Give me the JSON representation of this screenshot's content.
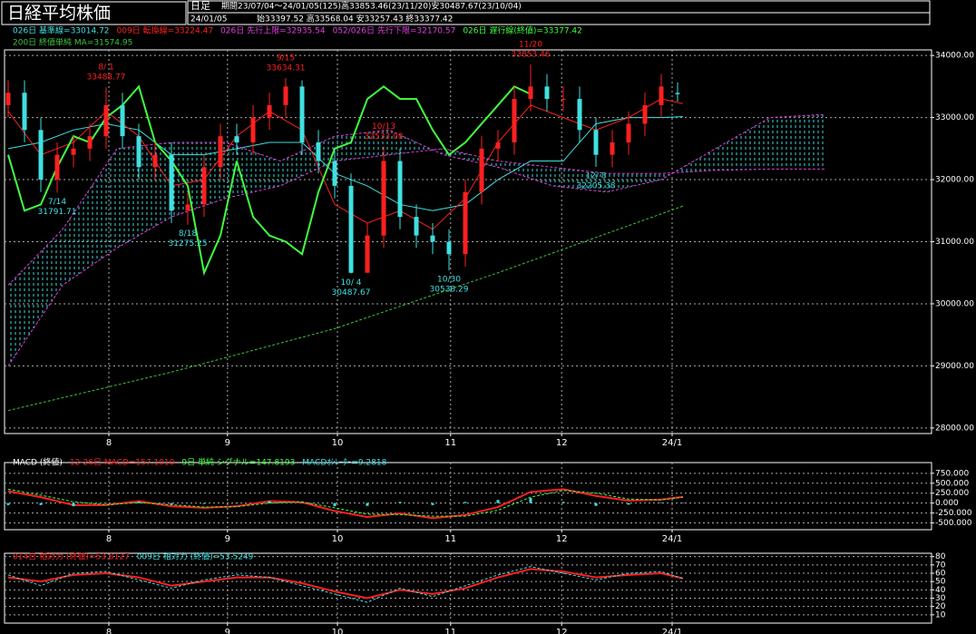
{
  "header": {
    "title": "日経平均株価",
    "period_label": "日足",
    "period": "期間23/07/04～24/01/05(125)高33853.46(23/11/20)安30487.67(23/10/04)",
    "date": "24/01/05",
    "ohlc": "始33397.52 高33568.04 安33257.43 終33377.42"
  },
  "chart_data": [
    {
      "type": "candlestick",
      "xlim": [
        -0.67,
        169.67
      ],
      "xticks": [
        {
          "value": 18.5,
          "label": "8"
        },
        {
          "value": 40.3,
          "label": "9"
        },
        {
          "value": 60.5,
          "label": "10"
        },
        {
          "value": 81.3,
          "label": "11"
        },
        {
          "value": 101.7,
          "label": "12"
        },
        {
          "value": 122,
          "label": "24/1"
        }
      ],
      "ylim": [
        27910,
        34090
      ],
      "yticks": [
        {
          "value": 34000,
          "label": "34000.00"
        },
        {
          "value": 33000,
          "label": "33000.00"
        },
        {
          "value": 32000,
          "label": "32000.00"
        },
        {
          "value": 31000,
          "label": "31000.00"
        },
        {
          "value": 30000,
          "label": "30000.00"
        },
        {
          "value": 29000,
          "label": "29000.00"
        },
        {
          "value": 28000,
          "label": "28000.00"
        }
      ],
      "grid": true,
      "up_color": "#ff2020",
      "down_color": "#40e0e0",
      "cloud_color": "#40d8d8",
      "candles": {
        "x": [
          0,
          3,
          6,
          9,
          12,
          15,
          18,
          21,
          24,
          27,
          30,
          33,
          36,
          39,
          42,
          45,
          48,
          51,
          54,
          57,
          60,
          63,
          66,
          69,
          72,
          75,
          78,
          81,
          84,
          87,
          90,
          93,
          96,
          99,
          102,
          105,
          108,
          111,
          114,
          117,
          120,
          123
        ],
        "open": [
          33200,
          33400,
          32800,
          32000,
          32400,
          32500,
          32700,
          33200,
          32700,
          32200,
          32400,
          31500,
          31600,
          32200,
          32700,
          32600,
          33000,
          33200,
          33500,
          32600,
          32300,
          31900,
          30500,
          31100,
          32300,
          31400,
          31100,
          31000,
          30800,
          31800,
          32500,
          32600,
          33300,
          33500,
          33300,
          33300,
          32800,
          32400,
          32600,
          32900,
          33200,
          33397.52
        ],
        "high": [
          33600,
          33600,
          33000,
          32600,
          32700,
          32900,
          33488.77,
          33400,
          32900,
          32600,
          32600,
          31800,
          32400,
          32900,
          32900,
          33200,
          33400,
          33634.31,
          33600,
          32800,
          32500,
          32100,
          31300,
          32533.08,
          32500,
          31600,
          31300,
          31200,
          32000,
          32700,
          32800,
          33500,
          33853.46,
          33700,
          33500,
          33500,
          33000,
          32800,
          33100,
          33400,
          33700,
          33568.04
        ],
        "low": [
          33000,
          32600,
          31800,
          31791.71,
          32200,
          32300,
          32500,
          32500,
          32000,
          32000,
          31300,
          31275.25,
          31400,
          32000,
          32400,
          32400,
          32800,
          33000,
          32400,
          32100,
          31700,
          30487.67,
          30700,
          30900,
          31200,
          30900,
          30800,
          30538.29,
          30600,
          31600,
          32300,
          32400,
          33100,
          33100,
          33100,
          32600,
          32205.38,
          32200,
          32400,
          32700,
          33000,
          33257.43
        ],
        "close": [
          33400,
          32800,
          32000,
          32400,
          32500,
          32700,
          33200,
          32700,
          32200,
          32400,
          31500,
          31600,
          32200,
          32700,
          32600,
          33000,
          33200,
          33500,
          32600,
          32300,
          31900,
          30500,
          31100,
          32300,
          31400,
          31100,
          31000,
          30800,
          31800,
          32500,
          32600,
          33300,
          33500,
          33300,
          33300,
          32800,
          32400,
          32600,
          32900,
          33200,
          33500,
          33377.42
        ]
      },
      "series": [
        {
          "name": "026日 基準線=33014.72",
          "color": "#40e0e0",
          "x": [
            0,
            6,
            12,
            18,
            24,
            30,
            36,
            42,
            48,
            54,
            60,
            66,
            72,
            78,
            84,
            90,
            96,
            102,
            108,
            114,
            120,
            124
          ],
          "values": [
            32500,
            32600,
            32800,
            32900,
            32800,
            32400,
            32400,
            32500,
            32600,
            32600,
            32100,
            31900,
            31600,
            31500,
            31600,
            32000,
            32300,
            32300,
            32900,
            33000,
            33000,
            33014.72
          ]
        },
        {
          "name": "009日 転換線=33224.47",
          "color": "#ff2020",
          "x": [
            0,
            6,
            12,
            18,
            24,
            30,
            36,
            42,
            48,
            54,
            60,
            66,
            72,
            78,
            84,
            90,
            96,
            102,
            108,
            114,
            120,
            124
          ],
          "values": [
            33100,
            32400,
            32600,
            33100,
            32700,
            31900,
            32000,
            32700,
            33100,
            32800,
            31600,
            31300,
            31500,
            31200,
            31700,
            32600,
            33200,
            33000,
            32800,
            33000,
            33300,
            33224.47
          ]
        },
        {
          "name": "026日 先行上限=32935.54",
          "color": "#e040e0",
          "cloud": true,
          "dash": true,
          "x": [
            0,
            10,
            20,
            30,
            40,
            50,
            60,
            70,
            80,
            90,
            100,
            110,
            120,
            130,
            140,
            150
          ],
          "values": [
            30300,
            31200,
            32500,
            32600,
            32600,
            32300,
            32700,
            32800,
            32400,
            32200,
            31900,
            31800,
            32000,
            32500,
            33000,
            33050
          ]
        },
        {
          "name": "052/026日 先行下限=32170.57",
          "color": "#e040e0",
          "cloud": true,
          "dash": true,
          "x": [
            0,
            10,
            20,
            30,
            40,
            50,
            60,
            70,
            80,
            90,
            100,
            110,
            120,
            130,
            140,
            150
          ],
          "values": [
            29000,
            30300,
            30900,
            31400,
            31700,
            31900,
            32300,
            32400,
            32500,
            32300,
            32200,
            32100,
            32100,
            32150,
            32170,
            32170.57
          ]
        },
        {
          "name": "026日 遅行線(終値)=33377.42",
          "color": "#40ff40",
          "width": 2,
          "x": [
            0,
            3,
            6,
            9,
            12,
            15,
            18,
            21,
            24,
            27,
            30,
            33,
            36,
            39,
            42,
            45,
            48,
            51,
            54,
            57,
            60,
            63,
            66,
            69,
            72,
            75,
            78,
            81,
            84,
            87,
            90,
            93,
            96
          ],
          "values": [
            32400,
            31500,
            31600,
            32200,
            32700,
            32600,
            33000,
            33200,
            33500,
            32600,
            32300,
            31900,
            30500,
            31100,
            32300,
            31400,
            31100,
            31000,
            30800,
            31800,
            32500,
            32600,
            33300,
            33500,
            33300,
            33300,
            32800,
            32400,
            32600,
            32900,
            33200,
            33500,
            33377.42
          ]
        },
        {
          "name": "200日 終値単純 MA=31574.95",
          "color": "#40c040",
          "dash": true,
          "x": [
            0,
            30,
            60,
            90,
            124
          ],
          "values": [
            28280,
            28900,
            29600,
            30500,
            31574.95
          ]
        }
      ],
      "annotations": [
        {
          "date": "7/14",
          "value": 31791.71
        },
        {
          "date": "8/ 1",
          "value": 33488.77
        },
        {
          "date": "8/18",
          "value": 31275.25
        },
        {
          "date": "9/15",
          "value": 33634.31
        },
        {
          "date": "10/ 4",
          "value": 30487.67
        },
        {
          "date": "10/13",
          "value": 32533.08
        },
        {
          "date": "10/30",
          "value": 30538.29
        },
        {
          "date": "11/20",
          "value": 33853.46
        },
        {
          "date": "12/ 8",
          "value": 32205.38
        }
      ]
    },
    {
      "type": "line",
      "title": "MACD (終値)",
      "xlim": [
        -0.67,
        169.67
      ],
      "xticks": [
        {
          "value": 18.5,
          "label": "8"
        },
        {
          "value": 40.3,
          "label": "9"
        },
        {
          "value": 60.5,
          "label": "10"
        },
        {
          "value": 81.3,
          "label": "11"
        },
        {
          "value": 101.7,
          "label": "12"
        },
        {
          "value": 122,
          "label": "24/1"
        }
      ],
      "ylim": [
        -670,
        1020
      ],
      "yticks": [
        {
          "value": 750,
          "label": "750.000"
        },
        {
          "value": 500,
          "label": "500.000"
        },
        {
          "value": 250,
          "label": "250.000"
        },
        {
          "value": 0,
          "label": "0.000"
        },
        {
          "value": -250,
          "label": "-250.000"
        },
        {
          "value": -500,
          "label": "-500.000"
        }
      ],
      "grid": true,
      "x": [
        0,
        6,
        12,
        18,
        24,
        30,
        36,
        42,
        48,
        54,
        60,
        66,
        72,
        78,
        84,
        90,
        96,
        102,
        108,
        114,
        120,
        124
      ],
      "series": [
        {
          "name": "12-26日 MACD=157.1010",
          "color": "#ff2020",
          "width": 2,
          "values": [
            300,
            150,
            -50,
            -50,
            50,
            -80,
            -120,
            -80,
            50,
            20,
            -200,
            -350,
            -260,
            -380,
            -300,
            -100,
            280,
            350,
            180,
            60,
            90,
            157.101
          ]
        },
        {
          "name": "9日 単純 シグナル=147.8193",
          "color": "#40ff40",
          "dash": true,
          "values": [
            350,
            200,
            30,
            -40,
            10,
            -40,
            -100,
            -90,
            0,
            30,
            -120,
            -280,
            -290,
            -330,
            -330,
            -180,
            150,
            320,
            250,
            100,
            80,
            147.8193
          ]
        },
        {
          "name": "MACDｵｼﾚｰﾀｰ=9.2818",
          "color": "#40e0e0",
          "type": "bar",
          "values": [
            -50,
            -50,
            -80,
            -10,
            40,
            -40,
            -20,
            10,
            50,
            -10,
            -80,
            -70,
            30,
            -50,
            30,
            80,
            130,
            30,
            -70,
            -40,
            10,
            9.2818
          ]
        }
      ]
    },
    {
      "type": "line",
      "xlim": [
        -0.67,
        169.67
      ],
      "xticks": [
        {
          "value": 18.5,
          "label": "8"
        },
        {
          "value": 40.3,
          "label": "9"
        },
        {
          "value": 60.5,
          "label": "10"
        },
        {
          "value": 81.3,
          "label": "11"
        },
        {
          "value": 101.7,
          "label": "12"
        },
        {
          "value": 122,
          "label": "24/1"
        }
      ],
      "ylim": [
        0,
        84
      ],
      "yticks": [
        80,
        70,
        60,
        50,
        40,
        30,
        20,
        10
      ],
      "grid": true,
      "x": [
        0,
        6,
        12,
        18,
        24,
        30,
        36,
        42,
        48,
        54,
        60,
        66,
        72,
        78,
        84,
        90,
        96,
        102,
        108,
        114,
        120,
        124
      ],
      "series": [
        {
          "name": "014日 相対力 (終値)=53.8127",
          "color": "#ff2020",
          "width": 2,
          "values": [
            55,
            50,
            58,
            60,
            55,
            45,
            50,
            55,
            55,
            48,
            38,
            30,
            40,
            35,
            42,
            55,
            65,
            62,
            55,
            58,
            60,
            53.8127
          ]
        },
        {
          "name": "009日 相対力 (終値)=53.5249",
          "color": "#40e0e0",
          "dash": true,
          "values": [
            58,
            45,
            60,
            62,
            52,
            42,
            52,
            58,
            55,
            45,
            35,
            25,
            42,
            32,
            45,
            58,
            68,
            60,
            52,
            60,
            62,
            53.5249
          ]
        }
      ]
    }
  ]
}
